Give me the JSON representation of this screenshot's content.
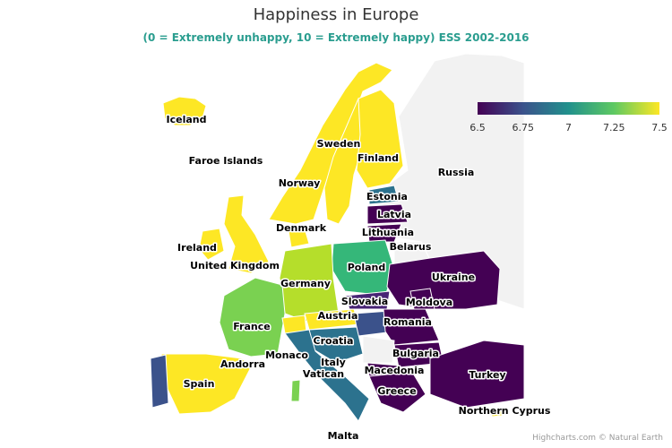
{
  "title": "Happiness in Europe",
  "subtitle": "(0 = Extremely unhappy, 10 = Extremely happy) ESS 2002-2016",
  "subtitle_color": "#2a9d8f",
  "credits": "Highcharts.com © Natural Earth",
  "legend": {
    "min": 6.5,
    "max": 7.5,
    "ticks": [
      "6.5",
      "6.75",
      "7",
      "7.25",
      "7.5"
    ]
  },
  "colors": {
    "low": "#440154",
    "mid": "#21918c",
    "high": "#fde725",
    "no_data": "#f2f2f2"
  },
  "country_labels": {
    "iceland": "Iceland",
    "faroe": "Faroe Islands",
    "sweden": "Sweden",
    "finland": "Finland",
    "norway": "Norway",
    "russia": "Russia",
    "estonia": "Estonia",
    "latvia": "Latvia",
    "denmark": "Denmark",
    "lithuania": "Lithuania",
    "ireland": "Ireland",
    "belarus": "Belarus",
    "uk": "United Kingdom",
    "poland": "Poland",
    "ukraine": "Ukraine",
    "germany": "Germany",
    "slovakia": "Slovakia",
    "moldova": "Moldova",
    "austria": "Austria",
    "france": "France",
    "romania": "Romania",
    "croatia": "Croatia",
    "monaco": "Monaco",
    "bulgaria": "Bulgaria",
    "andorra": "Andorra",
    "italy": "Italy",
    "vatican": "Vatican",
    "macedonia": "Macedonia",
    "turkey": "Turkey",
    "spain": "Spain",
    "greece": "Greece",
    "ncyprus": "Northern Cyprus",
    "malta": "Malta"
  }
}
